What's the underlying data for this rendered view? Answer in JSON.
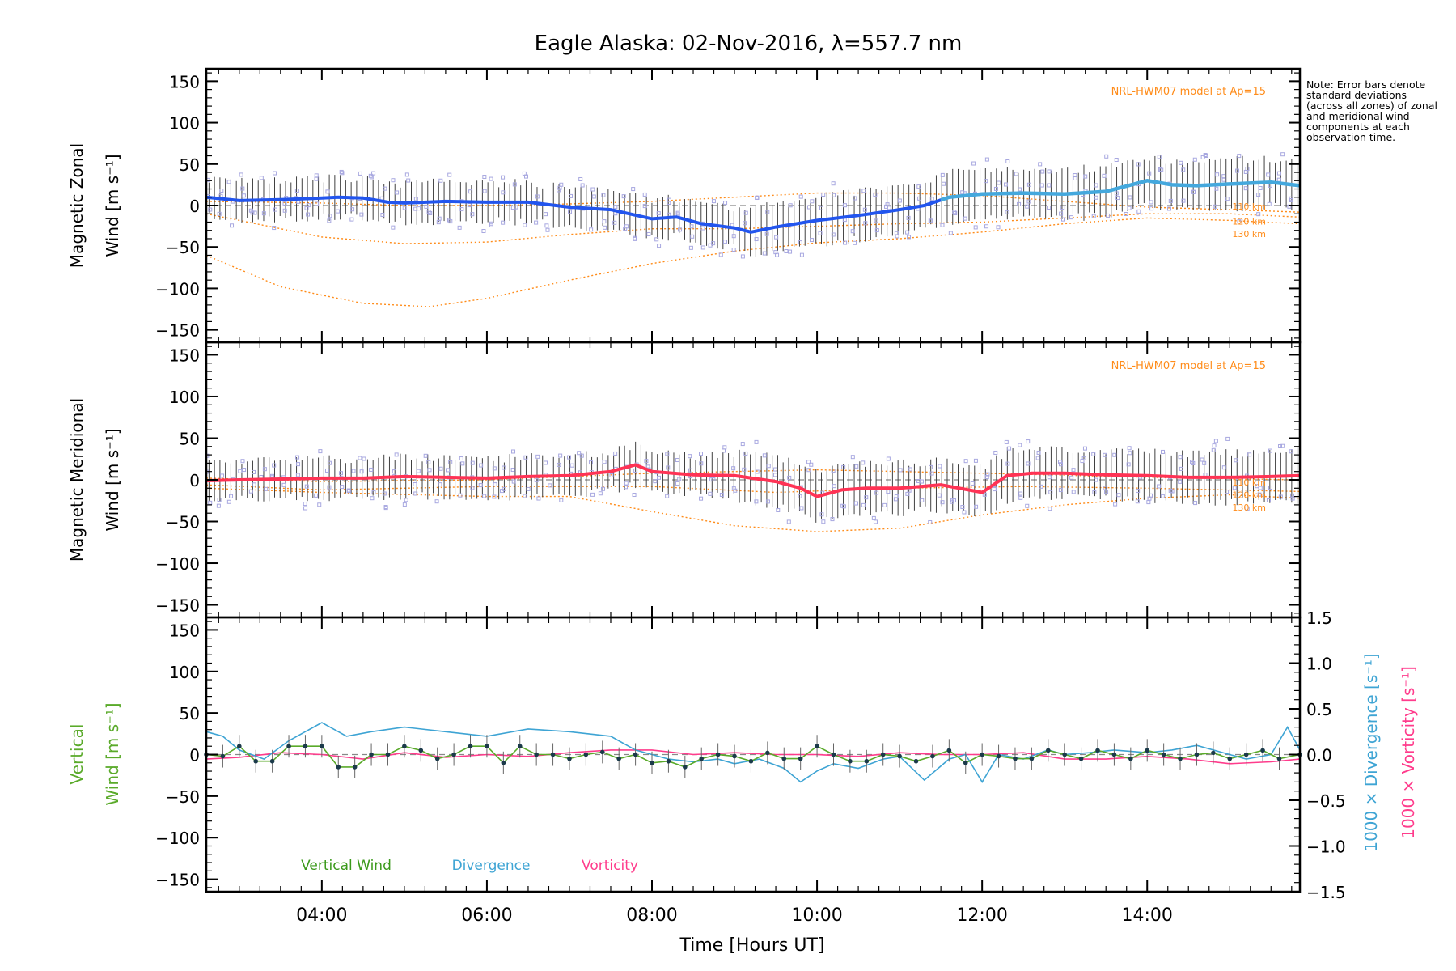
{
  "figure": {
    "title": "Eagle Alaska: 02-Nov-2016, λ=557.7 nm",
    "note": "Note: Error bars denote standard deviations (across all zones) of zonal and meridional wind components at each observation time.",
    "xlabel": "Time [Hours UT]",
    "xticks": [
      "04:00",
      "06:00",
      "08:00",
      "10:00",
      "12:00",
      "14:00"
    ],
    "yticks": [
      "150",
      "100",
      "50",
      "0",
      "−50",
      "−100",
      "−150"
    ],
    "right_yticks": [
      "1.5",
      "1.0",
      "0.5",
      "0.0",
      "−0.5",
      "−1.0",
      "−1.5"
    ],
    "model_label": "NRL-HWM07 model at Ap=15",
    "altitude_labels": [
      "110 km",
      "120 km",
      "130 km"
    ],
    "colors": {
      "zonal": "#2255ee",
      "zonal_late": "#44a8dd",
      "meridional": "#ff3355",
      "model": "#ff8c1a",
      "samples": "#a8a8e0",
      "vertical": "#5aaa2a",
      "divergence": "#3ea4d4",
      "vorticity": "#ff3c8c"
    }
  },
  "panels": {
    "zonal": {
      "ylabel_line1": "Magnetic Zonal",
      "ylabel_line2": "Wind [m s⁻¹]"
    },
    "meridional": {
      "ylabel_line1": "Magnetic Meridional",
      "ylabel_line2": "Wind [m s⁻¹]"
    },
    "vertical": {
      "ylabel_line1": "Vertical",
      "ylabel_line2": "Wind [m s⁻¹]",
      "right_label_div": "1000 × Divergence [s⁻¹]",
      "right_label_vor": "1000 × Vorticity [s⁻¹]",
      "legend": [
        "Vertical Wind",
        "Divergence",
        "Vorticity"
      ]
    }
  },
  "chart_data": [
    {
      "type": "line",
      "panel": "zonal",
      "xlim": [
        2.6,
        15.85
      ],
      "ylim": [
        -165,
        165
      ],
      "series": [
        {
          "role": "mean",
          "x": [
            2.6,
            3.0,
            3.5,
            4.0,
            4.2,
            4.5,
            4.8,
            5.0,
            5.5,
            6.0,
            6.5,
            7.0,
            7.5,
            8.0,
            8.3,
            8.6,
            9.0,
            9.2,
            9.5,
            10.0,
            10.5,
            11.0,
            11.3,
            11.6,
            12.0,
            12.5,
            13.0,
            13.5,
            14.0,
            14.3,
            14.6,
            15.0,
            15.5,
            15.85
          ],
          "values": [
            10,
            6,
            7,
            9,
            10,
            9,
            4,
            3,
            5,
            4,
            4,
            -2,
            -5,
            -16,
            -14,
            -22,
            -27,
            -32,
            -26,
            -18,
            -12,
            -5,
            0,
            10,
            14,
            15,
            14,
            17,
            30,
            25,
            24,
            26,
            28,
            24
          ]
        },
        {
          "name": "110 km",
          "role": "model",
          "x": [
            2.6,
            4.0,
            5.0,
            6.0,
            7.0,
            8.0,
            9.0,
            10.0,
            11.0,
            12.0,
            13.0,
            14.0,
            15.0,
            15.85
          ],
          "values": [
            5,
            3,
            0,
            0,
            2,
            5,
            10,
            15,
            15,
            12,
            5,
            -2,
            -5,
            -8
          ]
        },
        {
          "name": "120 km",
          "role": "model",
          "x": [
            2.6,
            4.0,
            5.0,
            6.0,
            7.0,
            8.0,
            9.0,
            10.0,
            11.0,
            12.0,
            13.0,
            14.0,
            15.0,
            15.85
          ],
          "values": [
            -10,
            -38,
            -46,
            -44,
            -35,
            -28,
            -28,
            -25,
            -22,
            -20,
            -15,
            -10,
            -10,
            -14
          ]
        },
        {
          "name": "130 km",
          "role": "model",
          "x": [
            2.6,
            3.5,
            4.5,
            5.3,
            6.0,
            7.0,
            8.0,
            9.0,
            10.0,
            11.0,
            12.0,
            13.0,
            14.0,
            15.0,
            15.85
          ],
          "values": [
            -60,
            -98,
            -118,
            -122,
            -112,
            -90,
            -70,
            -55,
            -45,
            -40,
            -32,
            -22,
            -15,
            -18,
            -22
          ]
        }
      ]
    },
    {
      "type": "line",
      "panel": "meridional",
      "xlim": [
        2.6,
        15.85
      ],
      "ylim": [
        -165,
        165
      ],
      "series": [
        {
          "role": "mean",
          "x": [
            2.6,
            3.0,
            3.5,
            4.0,
            4.5,
            5.0,
            5.5,
            6.0,
            6.5,
            7.0,
            7.5,
            7.8,
            8.0,
            8.5,
            9.0,
            9.5,
            9.8,
            10.0,
            10.3,
            10.6,
            11.0,
            11.5,
            12.0,
            12.3,
            12.6,
            13.0,
            13.5,
            14.0,
            14.5,
            15.0,
            15.5,
            15.85
          ],
          "values": [
            -1,
            0,
            1,
            2,
            2,
            4,
            3,
            2,
            4,
            5,
            10,
            18,
            10,
            6,
            5,
            -2,
            -10,
            -20,
            -12,
            -10,
            -10,
            -6,
            -15,
            5,
            8,
            8,
            6,
            5,
            3,
            3,
            4,
            5
          ]
        },
        {
          "name": "110 km",
          "role": "model",
          "x": [
            2.6,
            4.0,
            6.0,
            8.0,
            10.0,
            12.0,
            14.0,
            15.85
          ],
          "values": [
            2,
            -2,
            0,
            8,
            12,
            8,
            3,
            0
          ]
        },
        {
          "name": "120 km",
          "role": "model",
          "x": [
            2.6,
            4.0,
            6.0,
            8.0,
            9.5,
            11.0,
            12.5,
            14.0,
            15.85
          ],
          "values": [
            -6,
            -12,
            -8,
            -8,
            -15,
            -10,
            -8,
            -10,
            -14
          ]
        },
        {
          "name": "130 km",
          "role": "model",
          "x": [
            2.6,
            4.0,
            6.0,
            7.0,
            8.0,
            9.0,
            10.0,
            11.0,
            12.0,
            13.0,
            14.0,
            15.0,
            15.85
          ],
          "values": [
            -10,
            -15,
            -20,
            -20,
            -38,
            -55,
            -62,
            -58,
            -42,
            -30,
            -22,
            -18,
            -22
          ]
        }
      ]
    },
    {
      "type": "line",
      "panel": "vertical",
      "xlim": [
        2.6,
        15.85
      ],
      "ylim": [
        -165,
        165
      ],
      "right_ylim": [
        -1.5,
        1.5
      ],
      "series": [
        {
          "name": "Vertical Wind",
          "axis": "left",
          "x": [
            2.6,
            2.8,
            3.0,
            3.2,
            3.4,
            3.6,
            3.8,
            4.0,
            4.2,
            4.4,
            4.6,
            4.8,
            5.0,
            5.2,
            5.4,
            5.6,
            5.8,
            6.0,
            6.2,
            6.4,
            6.6,
            6.8,
            7.0,
            7.2,
            7.4,
            7.6,
            7.8,
            8.0,
            8.2,
            8.4,
            8.6,
            8.8,
            9.0,
            9.2,
            9.4,
            9.6,
            9.8,
            10.0,
            10.2,
            10.4,
            10.6,
            10.8,
            11.0,
            11.2,
            11.4,
            11.6,
            11.8,
            12.0,
            12.2,
            12.4,
            12.6,
            12.8,
            13.0,
            13.2,
            13.4,
            13.6,
            13.8,
            14.0,
            14.2,
            14.4,
            14.6,
            14.8,
            15.0,
            15.2,
            15.4,
            15.6,
            15.85
          ],
          "values": [
            0,
            -2,
            10,
            -8,
            -8,
            10,
            10,
            10,
            -15,
            -15,
            0,
            0,
            10,
            5,
            -5,
            0,
            10,
            10,
            -10,
            10,
            0,
            0,
            -5,
            0,
            3,
            -5,
            0,
            -10,
            -8,
            -15,
            -5,
            0,
            -2,
            -8,
            2,
            -5,
            -5,
            10,
            0,
            -8,
            -8,
            0,
            -2,
            -8,
            -2,
            5,
            -10,
            0,
            -2,
            -5,
            -5,
            5,
            0,
            -5,
            5,
            0,
            -5,
            5,
            0,
            -5,
            0,
            2,
            -5,
            0,
            5,
            -5,
            0
          ]
        },
        {
          "name": "Divergence",
          "axis": "right",
          "x": [
            2.6,
            2.8,
            3.0,
            3.3,
            3.6,
            4.0,
            4.3,
            4.6,
            5.0,
            5.5,
            6.0,
            6.5,
            7.0,
            7.5,
            7.8,
            8.0,
            8.2,
            8.5,
            8.8,
            9.0,
            9.3,
            9.6,
            9.8,
            10.0,
            10.2,
            10.5,
            10.8,
            11.0,
            11.3,
            11.6,
            11.8,
            12.0,
            12.2,
            12.5,
            12.8,
            13.0,
            13.3,
            13.6,
            14.0,
            14.3,
            14.6,
            15.0,
            15.2,
            15.5,
            15.7,
            15.85
          ],
          "values": [
            0.25,
            0.2,
            0.05,
            -0.05,
            0.15,
            0.35,
            0.2,
            0.25,
            0.3,
            0.25,
            0.2,
            0.28,
            0.25,
            0.2,
            0.05,
            0.0,
            -0.05,
            -0.08,
            -0.05,
            -0.1,
            -0.05,
            -0.15,
            -0.3,
            -0.18,
            -0.1,
            -0.15,
            -0.05,
            -0.02,
            -0.28,
            -0.05,
            0.0,
            -0.3,
            0.0,
            -0.05,
            0.05,
            0.0,
            0.02,
            0.05,
            0.02,
            0.05,
            0.1,
            0.0,
            -0.05,
            0.0,
            0.3,
            0.05
          ]
        },
        {
          "name": "Vorticity",
          "axis": "right",
          "x": [
            2.6,
            3.0,
            3.5,
            4.0,
            4.5,
            5.0,
            5.5,
            6.0,
            6.5,
            7.0,
            7.5,
            8.0,
            8.5,
            9.0,
            9.5,
            10.0,
            10.5,
            11.0,
            11.5,
            12.0,
            12.5,
            13.0,
            13.5,
            14.0,
            14.5,
            15.0,
            15.5,
            15.85
          ],
          "values": [
            -0.05,
            -0.03,
            0.02,
            0.0,
            -0.05,
            0.02,
            -0.03,
            0.0,
            -0.02,
            0.02,
            0.05,
            0.05,
            0.0,
            0.02,
            0.0,
            0.0,
            -0.02,
            0.02,
            0.0,
            0.0,
            0.02,
            -0.05,
            -0.05,
            -0.02,
            -0.05,
            -0.1,
            -0.08,
            -0.05
          ]
        }
      ]
    }
  ]
}
